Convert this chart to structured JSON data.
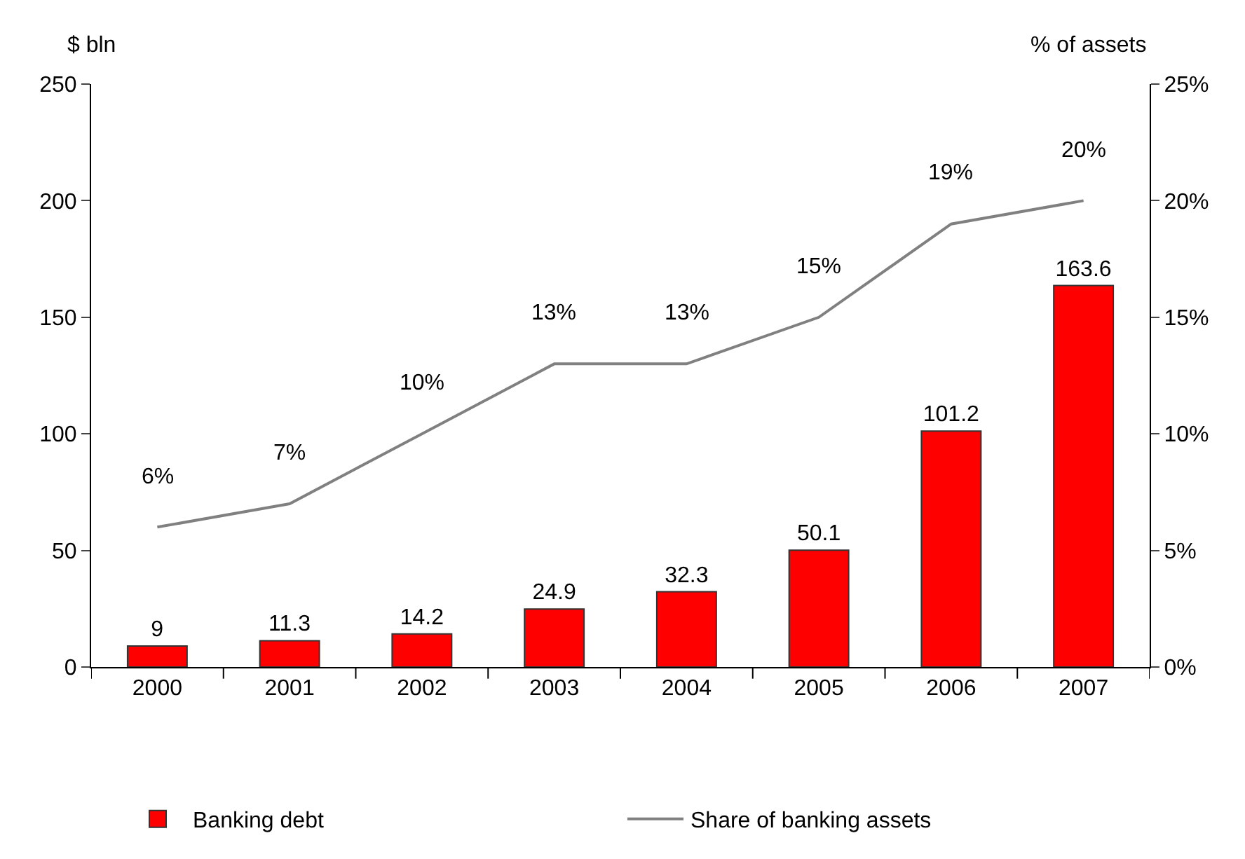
{
  "chart_data": {
    "type": "bar",
    "categories": [
      "2000",
      "2001",
      "2002",
      "2003",
      "2004",
      "2005",
      "2006",
      "2007"
    ],
    "ylabel": "$ bln",
    "y2label": "% of assets",
    "ylim": [
      0,
      250
    ],
    "yticks": [
      0,
      50,
      100,
      150,
      200,
      250
    ],
    "y2lim": [
      0,
      25
    ],
    "y2ticks": [
      {
        "value": 0,
        "label": "0%"
      },
      {
        "value": 5,
        "label": "5%"
      },
      {
        "value": 10,
        "label": "10%"
      },
      {
        "value": 15,
        "label": "15%"
      },
      {
        "value": 20,
        "label": "20%"
      },
      {
        "value": 25,
        "label": "25%"
      }
    ],
    "series": [
      {
        "name": "Banking debt",
        "color": "#ff0000",
        "values": [
          9,
          11.3,
          14.2,
          24.9,
          32.3,
          50.1,
          101.2,
          163.6
        ],
        "value_labels": [
          "9",
          "11.3",
          "14.2",
          "24.9",
          "32.3",
          "50.1",
          "101.2",
          "163.6"
        ]
      },
      {
        "name": "Share of banking assets",
        "type": "line",
        "axis": "y2",
        "color": "#808080",
        "values": [
          6,
          7,
          10,
          13,
          13,
          15,
          19,
          20
        ],
        "value_labels": [
          "6%",
          "7%",
          "10%",
          "13%",
          "13%",
          "15%",
          "19%",
          "20%"
        ]
      }
    ],
    "grid": false,
    "legend": "bottom",
    "marker": "none",
    "line_style": "solid"
  }
}
